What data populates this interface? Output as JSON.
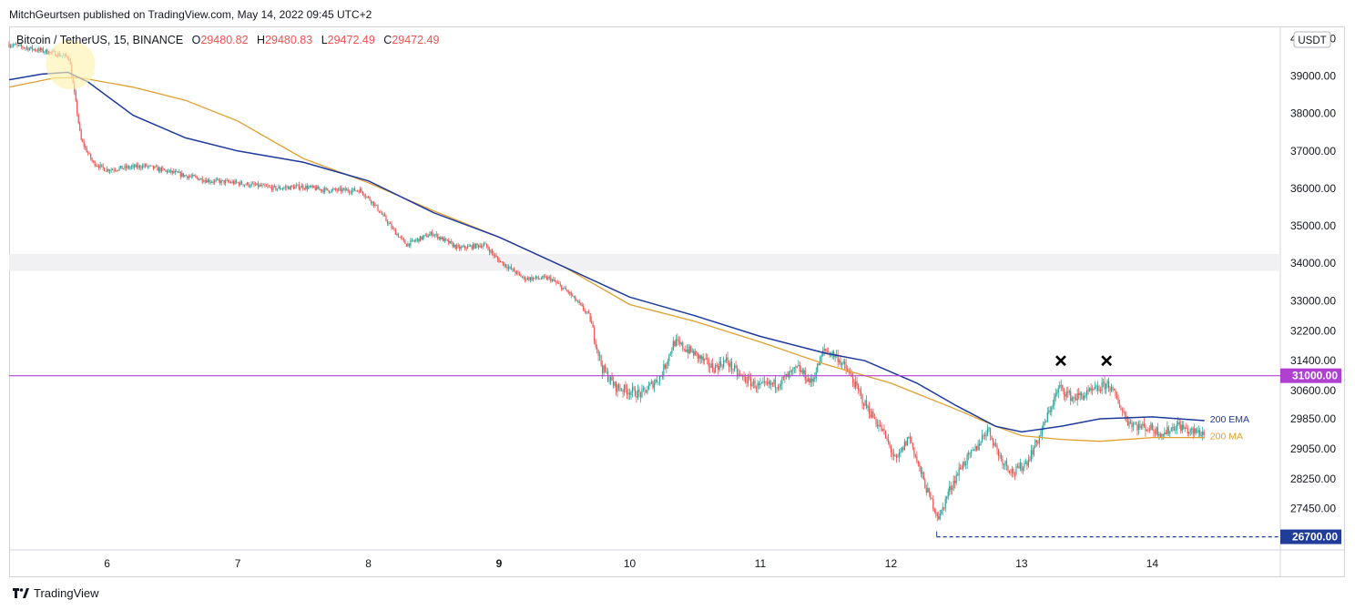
{
  "header": {
    "published_by": "MitchGeurtsen published on TradingView.com, May 14, 2022 09:45 UTC+2"
  },
  "legend": {
    "symbol": "Bitcoin / TetherUS, 15, BINANCE",
    "open_label": "O",
    "open": "29480.82",
    "high_label": "H",
    "high": "29480.83",
    "low_label": "L",
    "low": "29472.49",
    "close_label": "C",
    "close": "29472.49"
  },
  "footer": {
    "brand": "TradingView"
  },
  "colors": {
    "up": "#26a69a",
    "down": "#ef5350",
    "ema": "#1e3a9c",
    "ma": "#e0a030",
    "resistance": "#b040d0",
    "support": "#1f3d99",
    "grid": "#f0f3fa"
  },
  "chart_data": {
    "type": "candlestick",
    "y_axis": {
      "currency": "USDT",
      "range": [
        26350,
        40300
      ],
      "ticks": [
        40000,
        39000,
        38000,
        37000,
        36000,
        35000,
        34000,
        33000,
        32200,
        31400,
        30600,
        29850,
        29050,
        28250,
        27450
      ],
      "tick_labels": [
        "40000.00",
        "39000.00",
        "38000.00",
        "37000.00",
        "36000.00",
        "35000.00",
        "34000.00",
        "33000.00",
        "32200.00",
        "31400.00",
        "30600.00",
        "29850.00",
        "29050.00",
        "28250.00",
        "27450.00"
      ]
    },
    "x_axis": {
      "range": [
        5.25,
        14.98
      ],
      "ticks": [
        6,
        7,
        8,
        9,
        10,
        11,
        12,
        13,
        14
      ],
      "tick_labels": [
        "6",
        "7",
        "8",
        "9",
        "10",
        "11",
        "12",
        "13",
        "14"
      ],
      "bold_tick": "9"
    },
    "price_path": [
      [
        5.25,
        39850
      ],
      [
        5.55,
        39650
      ],
      [
        5.72,
        39500
      ],
      [
        5.77,
        38300
      ],
      [
        5.81,
        37300
      ],
      [
        5.9,
        36700
      ],
      [
        6.0,
        36500
      ],
      [
        6.3,
        36600
      ],
      [
        6.6,
        36350
      ],
      [
        6.8,
        36200
      ],
      [
        7.0,
        36150
      ],
      [
        7.3,
        36000
      ],
      [
        7.5,
        36050
      ],
      [
        7.7,
        35950
      ],
      [
        7.95,
        35950
      ],
      [
        8.05,
        35600
      ],
      [
        8.2,
        34900
      ],
      [
        8.3,
        34500
      ],
      [
        8.5,
        34800
      ],
      [
        8.7,
        34400
      ],
      [
        8.9,
        34500
      ],
      [
        9.0,
        34100
      ],
      [
        9.2,
        33600
      ],
      [
        9.4,
        33600
      ],
      [
        9.55,
        33200
      ],
      [
        9.7,
        32600
      ],
      [
        9.8,
        31200
      ],
      [
        9.9,
        30700
      ],
      [
        10.1,
        30500
      ],
      [
        10.25,
        31000
      ],
      [
        10.35,
        31900
      ],
      [
        10.5,
        31600
      ],
      [
        10.65,
        31200
      ],
      [
        10.75,
        31400
      ],
      [
        10.85,
        31000
      ],
      [
        11.0,
        30700
      ],
      [
        11.15,
        30800
      ],
      [
        11.3,
        31200
      ],
      [
        11.4,
        30800
      ],
      [
        11.5,
        31700
      ],
      [
        11.6,
        31500
      ],
      [
        11.7,
        31000
      ],
      [
        11.8,
        30300
      ],
      [
        11.95,
        29500
      ],
      [
        12.05,
        28700
      ],
      [
        12.15,
        29400
      ],
      [
        12.22,
        28600
      ],
      [
        12.3,
        27800
      ],
      [
        12.38,
        27200
      ],
      [
        12.45,
        27900
      ],
      [
        12.55,
        28600
      ],
      [
        12.65,
        29000
      ],
      [
        12.75,
        29600
      ],
      [
        12.85,
        28800
      ],
      [
        12.95,
        28400
      ],
      [
        13.05,
        28700
      ],
      [
        13.15,
        29400
      ],
      [
        13.25,
        30300
      ],
      [
        13.3,
        30700
      ],
      [
        13.4,
        30400
      ],
      [
        13.5,
        30500
      ],
      [
        13.6,
        30650
      ],
      [
        13.67,
        30800
      ],
      [
        13.75,
        30300
      ],
      [
        13.82,
        29800
      ],
      [
        13.9,
        29650
      ],
      [
        14.0,
        29600
      ],
      [
        14.1,
        29450
      ],
      [
        14.2,
        29700
      ],
      [
        14.3,
        29500
      ],
      [
        14.4,
        29480
      ]
    ],
    "ema_200": [
      [
        5.25,
        38900
      ],
      [
        5.5,
        39050
      ],
      [
        5.7,
        39100
      ],
      [
        5.85,
        38850
      ],
      [
        6.2,
        37950
      ],
      [
        6.6,
        37350
      ],
      [
        7.0,
        37000
      ],
      [
        7.5,
        36700
      ],
      [
        8.0,
        36200
      ],
      [
        8.5,
        35350
      ],
      [
        9.0,
        34700
      ],
      [
        9.5,
        33900
      ],
      [
        10.0,
        33100
      ],
      [
        10.5,
        32600
      ],
      [
        11.0,
        32050
      ],
      [
        11.5,
        31600
      ],
      [
        11.8,
        31400
      ],
      [
        12.2,
        30800
      ],
      [
        12.5,
        30200
      ],
      [
        12.8,
        29650
      ],
      [
        13.0,
        29500
      ],
      [
        13.3,
        29650
      ],
      [
        13.6,
        29850
      ],
      [
        14.0,
        29900
      ],
      [
        14.4,
        29800
      ]
    ],
    "ma_200": [
      [
        5.25,
        38700
      ],
      [
        5.6,
        38950
      ],
      [
        5.8,
        38950
      ],
      [
        6.2,
        38700
      ],
      [
        6.6,
        38350
      ],
      [
        7.0,
        37800
      ],
      [
        7.5,
        36800
      ],
      [
        8.0,
        36150
      ],
      [
        8.5,
        35400
      ],
      [
        9.0,
        34700
      ],
      [
        9.5,
        33900
      ],
      [
        10.0,
        32900
      ],
      [
        10.5,
        32450
      ],
      [
        11.0,
        31900
      ],
      [
        11.5,
        31300
      ],
      [
        12.0,
        30800
      ],
      [
        12.5,
        30100
      ],
      [
        12.8,
        29650
      ],
      [
        13.0,
        29400
      ],
      [
        13.3,
        29300
      ],
      [
        13.6,
        29250
      ],
      [
        14.0,
        29350
      ],
      [
        14.4,
        29350
      ]
    ],
    "series": [
      {
        "name": "200 EMA",
        "label_value": 29850
      },
      {
        "name": "200 MA",
        "label_value": 29400
      }
    ],
    "annotations": {
      "resistance_level": 31000,
      "resistance_label": "31000.00",
      "support_level": 26700,
      "support_label": "26700.00",
      "support_start_x": 12.35,
      "zone": [
        33800,
        34250
      ],
      "highlight_point": [
        5.72,
        39300
      ],
      "double_top_marks": [
        [
          13.3,
          31400
        ],
        [
          13.65,
          31400
        ]
      ]
    }
  }
}
